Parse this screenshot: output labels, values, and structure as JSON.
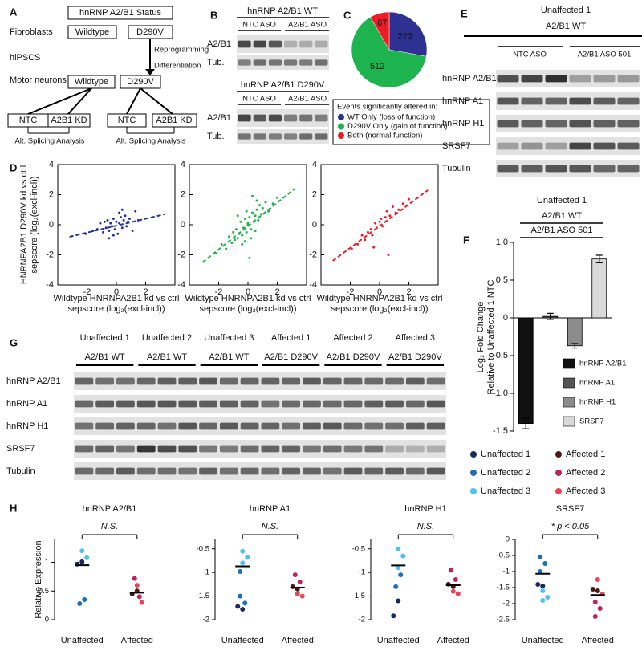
{
  "figure": {
    "panel_a": {
      "letter": "A",
      "status": "hnRNP A2/B1 Status",
      "stages": [
        "Fibroblasts",
        "hiPSCS",
        "Motor neurons"
      ],
      "genotypes": [
        "Wildtype",
        "D290V"
      ],
      "steps": [
        "Reprogramming",
        "Differentiation"
      ],
      "conditions": [
        "NTC",
        "A2B1 KD"
      ],
      "analysis": "Alt. Splicing Analysis"
    },
    "panel_b": {
      "letter": "B",
      "blots": [
        {
          "title": "hnRNP A2/B1 WT",
          "conditions": [
            "NTC ASO",
            "A2/B1 ASO"
          ],
          "rows": [
            "A2/B1",
            "Tub."
          ]
        },
        {
          "title": "hnRNP A2/B1 D290V",
          "conditions": [
            "NTC ASO",
            "A2/B1 ASO"
          ],
          "rows": [
            "A2/B1",
            "Tub."
          ]
        }
      ]
    },
    "panel_e": {
      "letter": "E",
      "line": "Unaffected 1",
      "genotype": "A2/B1 WT",
      "conditions": [
        "NTC ASO",
        "A2/B1 ASO 501"
      ],
      "rows": [
        "hnRNP A2/B1",
        "hnRNP A1",
        "hnRNP H1",
        "SRSF7",
        "Tubulin"
      ]
    },
    "panel_g": {
      "letter": "G",
      "lanes": [
        {
          "line": "Unaffected 1",
          "genotype": "A2/B1 WT"
        },
        {
          "line": "Unaffected 2",
          "genotype": "A2/B1 WT"
        },
        {
          "line": "Unaffected 3",
          "genotype": "A2/B1 WT"
        },
        {
          "line": "Affected 1",
          "genotype": "A2/B1 D290V"
        },
        {
          "line": "Affected 2",
          "genotype": "A2/B1 D290V"
        },
        {
          "line": "Affected 3",
          "genotype": "A2/B1 D290V"
        }
      ],
      "rows": [
        "hnRNP A2/B1",
        "hnRNP A1",
        "hnRNP H1",
        "SRSF7",
        "Tubulin"
      ]
    },
    "cell_lines": [
      {
        "name": "Unaffected 1",
        "color": "#1b2a5e"
      },
      {
        "name": "Unaffected 2",
        "color": "#1f6fb5"
      },
      {
        "name": "Unaffected 3",
        "color": "#4fc3e8"
      },
      {
        "name": "Affected 1",
        "color": "#4a1a12"
      },
      {
        "name": "Affected 2",
        "color": "#c0235a"
      },
      {
        "name": "Affected 3",
        "color": "#e8455a"
      }
    ]
  },
  "chart_data": [
    {
      "type": "pie",
      "panel": "C",
      "legend_title": "Events significantly altered in:",
      "categories": [
        "WT Only (loss of function)",
        "D290V Only (gain of function)",
        "Both (normal function)"
      ],
      "values": [
        223,
        512,
        67
      ],
      "colors": [
        "#2e3192",
        "#1db34f",
        "#ed1c24"
      ]
    },
    {
      "type": "scatter",
      "panel": "D",
      "color": "#2b3591",
      "ylabel": [
        "HNRNPA2B1 D290V kd vs ctrl",
        "sepscore (log₂(excl-incl))"
      ],
      "xlabel": [
        "Wildtype HNRNPA2B1 kd vs ctrl",
        "sepscore (log₂(excl-incl))"
      ],
      "xlim": [
        -4,
        4
      ],
      "ylim": [
        -4,
        4
      ],
      "xticks": [
        -2,
        0,
        2
      ],
      "yticks": [
        -4,
        -2,
        0,
        2,
        4
      ],
      "x": [
        -2.1,
        -1.6,
        -1.3,
        -1.1,
        -0.9,
        -0.8,
        -0.7,
        -0.6,
        -0.5,
        -0.4,
        -0.3,
        -0.2,
        -0.1,
        0,
        0.1,
        0.2,
        0.3,
        0.4,
        0.5,
        0.6,
        0.7,
        0.8,
        0.9,
        1.1,
        1.3,
        1.5,
        -0.5,
        0.2,
        0.4,
        -0.2
      ],
      "y": [
        -0.6,
        -0.4,
        -0.3,
        0.1,
        -0.5,
        0.2,
        -0.2,
        0.3,
        -0.4,
        0.1,
        -0.1,
        0.4,
        -0.3,
        0.2,
        -0.6,
        0.1,
        0.5,
        -0.2,
        0.3,
        0.6,
        -0.1,
        0.2,
        0.4,
        -0.4,
        0.9,
        0.3,
        -0.9,
        0.8,
        1.0,
        -0.7
      ],
      "fit": {
        "x": [
          -3.2,
          3.3
        ],
        "y": [
          -0.8,
          0.7
        ]
      }
    },
    {
      "type": "scatter",
      "color": "#22b14c",
      "xlabel": [
        "Wildtype HNRNPA2B1 kd vs ctrl",
        "sepscore (log₂(excl-incl))"
      ],
      "xlim": [
        -4,
        4
      ],
      "ylim": [
        -4,
        4
      ],
      "xticks": [
        -2,
        0,
        2
      ],
      "yticks": [
        -4,
        -2,
        0,
        2,
        4
      ],
      "x": [
        -2.2,
        -1.8,
        -1.5,
        -1.3,
        -1.1,
        -1.0,
        -0.9,
        -0.8,
        -0.7,
        -0.6,
        -0.5,
        -0.4,
        -0.3,
        -0.2,
        -0.1,
        0,
        0.1,
        0.2,
        0.3,
        0.4,
        0.5,
        0.6,
        0.7,
        0.8,
        0.9,
        1.0,
        1.2,
        1.4,
        1.7,
        2.0,
        -0.4,
        -0.1,
        0.2,
        0.5,
        -0.7,
        0.1,
        0.3,
        -0.2,
        0.6,
        0
      ],
      "y": [
        -1.9,
        -1.3,
        -1.6,
        -0.8,
        -1.2,
        -0.5,
        -1.0,
        -0.3,
        -0.9,
        -0.6,
        0.2,
        -0.7,
        -0.2,
        0.4,
        -0.5,
        0.1,
        0.5,
        -0.3,
        0.8,
        0.2,
        0.6,
        1.0,
        0.3,
        1.3,
        0.7,
        1.1,
        1.5,
        0.9,
        1.4,
        1.8,
        -1.3,
        0.9,
        -0.9,
        -0.4,
        0.6,
        -2.2,
        1.9,
        -1.1,
        1.6,
        0.0
      ],
      "fit": {
        "x": [
          -3.1,
          3.2
        ],
        "y": [
          -2.5,
          2.4
        ]
      }
    },
    {
      "type": "scatter",
      "color": "#e8202a",
      "xlabel": [
        "Wildtype HNRNPA2B1 kd vs ctrl",
        "sepscore (log₂(excl-incl))"
      ],
      "xlim": [
        -4,
        4
      ],
      "ylim": [
        -4,
        4
      ],
      "xticks": [
        -2,
        0,
        2
      ],
      "yticks": [
        -4,
        -2,
        0,
        2,
        4
      ],
      "x": [
        -1.9,
        -1.5,
        -1.2,
        -1.0,
        -0.8,
        -0.6,
        -0.5,
        -0.3,
        -0.2,
        0,
        0.1,
        0.2,
        0.4,
        0.5,
        0.7,
        0.9,
        1.1,
        1.3,
        1.6,
        2.0,
        0.6,
        -0.4
      ],
      "y": [
        -1.6,
        -1.3,
        -0.7,
        -1.0,
        -0.5,
        -0.3,
        -0.7,
        0.1,
        -0.2,
        0.2,
        0.4,
        -0.1,
        0.5,
        0.9,
        0.6,
        1.2,
        0.8,
        1.0,
        1.4,
        1.7,
        -2.0,
        -1.5
      ],
      "fit": {
        "x": [
          -3.2,
          3.3
        ],
        "y": [
          -2.4,
          2.3
        ]
      }
    },
    {
      "type": "bar",
      "panel": "F",
      "header": [
        "Unaffected 1",
        "A2/B1 WT",
        "A2/B1 ASO 501"
      ],
      "ylabel": [
        "Log₂ Fold Change",
        "Relative to Unaffected 1 NTC"
      ],
      "categories": [
        "hnRNP A2/B1",
        "hnRNP A1",
        "hnRNP H1",
        "SRSF7"
      ],
      "values": [
        -1.4,
        0.02,
        -0.37,
        0.78
      ],
      "errors": [
        0.07,
        0.04,
        0.03,
        0.05
      ],
      "colors": [
        "#111111",
        "#555555",
        "#8c8c8c",
        "#d9d9d9"
      ],
      "ylim": [
        -1.5,
        1.0
      ],
      "yticks": [
        {
          "value": 1.0,
          "label": "1.0"
        },
        0.5,
        0,
        -0.5,
        {
          "value": -1.0,
          "label": "-1.0"
        },
        -1.5
      ]
    },
    {
      "type": "dot",
      "panel": "H",
      "title": "hnRNP A2/B1",
      "annotation": "N.S.",
      "ylabel": "Relative Expression",
      "ylim": [
        0,
        1.4
      ],
      "yticks": [
        0,
        0.5,
        1
      ],
      "groups": [
        {
          "label": "Unaffected",
          "mean": 0.95,
          "lines": [
            [
              0.97,
              1.01
            ],
            [
              0.28,
              0.35
            ],
            [
              1.2,
              1.08
            ]
          ]
        },
        {
          "label": "Affected",
          "mean": 0.47,
          "lines": [
            [
              0.45,
              0.5
            ],
            [
              0.72,
              0.4
            ],
            [
              0.6,
              0.3
            ]
          ]
        }
      ]
    },
    {
      "type": "dot",
      "title": "hnRNP A1",
      "annotation": "N.S.",
      "ylim": [
        -2,
        -0.3
      ],
      "yticks": [
        -2,
        -1.5,
        -1,
        -0.5
      ],
      "groups": [
        {
          "label": "Unaffected",
          "mean": -0.87,
          "lines": [
            [
              -1.72,
              -1.78
            ],
            [
              -1.5,
              -1.65,
              -0.98
            ],
            [
              -0.55,
              -0.68,
              -0.8
            ]
          ]
        },
        {
          "label": "Affected",
          "mean": -1.32,
          "lines": [
            [
              -1.3,
              -1.35
            ],
            [
              -1.05,
              -1.2
            ],
            [
              -1.45,
              -1.5
            ]
          ]
        }
      ]
    },
    {
      "type": "dot",
      "title": "hnRNP H1",
      "annotation": "N.S.",
      "ylim": [
        -2,
        -0.3
      ],
      "yticks": [
        -2,
        -1.5,
        -1,
        -0.5
      ],
      "groups": [
        {
          "label": "Unaffected",
          "mean": -0.85,
          "lines": [
            [
              -1.92,
              -1.6
            ],
            [
              -1.3,
              -1.05
            ],
            [
              -0.5,
              -0.65,
              -0.9
            ]
          ]
        },
        {
          "label": "Affected",
          "mean": -1.27,
          "lines": [
            [
              -1.25,
              -1.3
            ],
            [
              -0.95,
              -1.15
            ],
            [
              -1.4,
              -1.45
            ]
          ]
        }
      ]
    },
    {
      "type": "dot",
      "title": "SRSF7",
      "annotation": "* p < 0.05",
      "ylim": [
        -2.5,
        0
      ],
      "yticks": [
        -2.5,
        -2,
        -1.5,
        -1,
        -0.5,
        0
      ],
      "groups": [
        {
          "label": "Unaffected",
          "mean": -1.07,
          "lines": [
            [
              -1.4,
              -1.45
            ],
            [
              -0.55,
              -0.75,
              -1.0
            ],
            [
              -1.6,
              -1.8,
              -1.9
            ]
          ]
        },
        {
          "label": "Affected",
          "mean": -1.73,
          "lines": [
            [
              -1.55,
              -1.6
            ],
            [
              -1.95,
              -2.15,
              -2.4
            ],
            [
              -1.25,
              -1.7
            ]
          ]
        }
      ]
    }
  ]
}
